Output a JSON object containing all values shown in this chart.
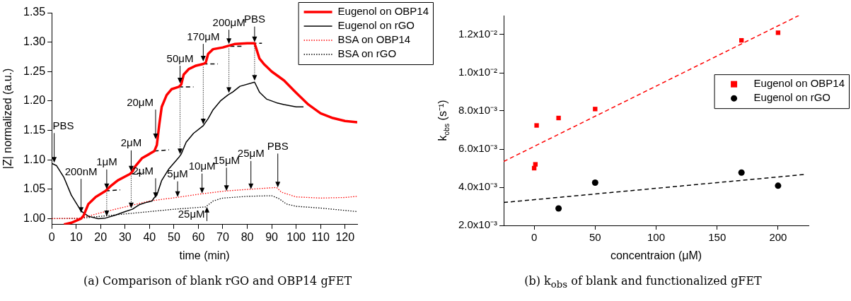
{
  "chart_data": [
    {
      "type": "line",
      "title": "(a) Comparison of blank rGO and OBP14 gFET",
      "xlabel": "time (min)",
      "ylabel": "|Z| normalized (a.u.)",
      "xlim": [
        0,
        125
      ],
      "xticks": [
        0,
        10,
        20,
        30,
        40,
        50,
        60,
        70,
        80,
        90,
        100,
        110,
        120
      ],
      "ylim": [
        0.99,
        1.35
      ],
      "yticks": [
        {
          "value": 1,
          "label": "1.00"
        },
        {
          "value": 1.05,
          "label": "1.05"
        },
        {
          "value": 1.1,
          "label": "1.10"
        },
        {
          "value": 1.15,
          "label": "1.15"
        },
        {
          "value": 1.2,
          "label": "1.20"
        },
        {
          "value": 1.25,
          "label": "1.25"
        },
        {
          "value": 1.3,
          "label": "1.30"
        },
        {
          "value": 1.35,
          "label": "1.35"
        }
      ],
      "grid": false,
      "legend": "top right",
      "marker": "none",
      "series": [
        {
          "name": "Eugenol on OBP14",
          "color": "#ff0000",
          "line_style": "solid",
          "x": [
            5,
            8,
            12,
            13,
            15,
            18,
            22,
            24,
            27,
            32,
            33,
            34,
            37,
            40,
            42,
            43,
            44,
            45,
            47,
            49,
            52,
            53,
            54,
            56,
            59,
            62,
            63,
            64,
            66,
            70,
            75,
            80,
            83,
            84,
            85,
            87,
            90,
            95,
            100,
            105,
            110,
            115,
            120,
            125
          ],
          "values": [
            0.99,
            0.993,
            1.0,
            1.005,
            1.025,
            1.037,
            1.047,
            1.055,
            1.065,
            1.076,
            1.08,
            1.088,
            1.103,
            1.11,
            1.115,
            1.125,
            1.16,
            1.19,
            1.21,
            1.22,
            1.224,
            1.228,
            1.245,
            1.254,
            1.26,
            1.263,
            1.265,
            1.28,
            1.288,
            1.291,
            1.297,
            1.298,
            1.298,
            1.285,
            1.272,
            1.262,
            1.25,
            1.235,
            1.214,
            1.194,
            1.179,
            1.171,
            1.166,
            1.164
          ]
        },
        {
          "name": "Eugenol on rGO",
          "color": "#000000",
          "line_style": "solid",
          "x": [
            0,
            2,
            5,
            8,
            12,
            15,
            19,
            22,
            26,
            30,
            33,
            36,
            39,
            41,
            42,
            43,
            45,
            48,
            52,
            53,
            55,
            58,
            62,
            64,
            66,
            69,
            72,
            74,
            77,
            83,
            85,
            88,
            92,
            95,
            100,
            103
          ],
          "values": [
            1.094,
            1.09,
            1.07,
            1.04,
            1.013,
            1.004,
            1.0,
            1.001,
            1.006,
            1.012,
            1.016,
            1.024,
            1.028,
            1.03,
            1.036,
            1.04,
            1.065,
            1.085,
            1.104,
            1.11,
            1.13,
            1.145,
            1.158,
            1.17,
            1.185,
            1.2,
            1.21,
            1.215,
            1.225,
            1.232,
            1.215,
            1.203,
            1.197,
            1.194,
            1.19,
            1.19
          ]
        },
        {
          "name": "BSA on OBP14",
          "color": "#ff0000",
          "line_style": "dotted",
          "x": [
            0,
            12,
            20,
            30,
            40,
            51,
            61,
            71,
            81,
            92,
            94,
            100,
            110,
            120,
            125
          ],
          "values": [
            1.0,
            1.001,
            1.01,
            1.02,
            1.03,
            1.036,
            1.042,
            1.047,
            1.05,
            1.053,
            1.045,
            1.037,
            1.035,
            1.036,
            1.038
          ]
        },
        {
          "name": "BSA on rGO",
          "color": "#000000",
          "line_style": "dotted",
          "x": [
            0,
            10,
            20,
            30,
            40,
            50,
            63,
            66,
            70,
            80,
            90,
            93,
            96,
            100,
            110,
            125
          ],
          "values": [
            1.0,
            1.0,
            1.004,
            1.008,
            1.012,
            1.016,
            1.02,
            1.03,
            1.035,
            1.038,
            1.039,
            1.034,
            1.025,
            1.021,
            1.018,
            1.012
          ]
        },
        {
          "color": "#000000",
          "line_style": "dashed",
          "x": [
            22,
            28,
            29,
            32,
            38,
            39,
            42,
            48,
            49,
            52,
            58,
            59,
            62,
            68,
            69,
            73,
            78,
            79,
            82,
            86
          ],
          "values": [
            1.047,
            1.049,
            null,
            1.076,
            1.078,
            null,
            1.115,
            1.117,
            null,
            1.224,
            1.224,
            null,
            1.263,
            1.263,
            null,
            1.293,
            1.293,
            null,
            1.298,
            1.298
          ]
        }
      ],
      "annotations": [
        {
          "text": "PBS",
          "x": 1,
          "y": 1.095
        },
        {
          "text": "200nM",
          "x": 12,
          "y": 1.01
        },
        {
          "text": "1μM",
          "x": 22.5,
          "y": 1.05
        },
        {
          "text": "2μM",
          "x": 32.5,
          "y": 1.08
        },
        {
          "text": "20μM",
          "x": 42.5,
          "y": 1.135
        },
        {
          "text": "50μM",
          "x": 52.5,
          "y": 1.23
        },
        {
          "text": "170μM",
          "x": 62,
          "y": 1.267
        },
        {
          "text": "200μM",
          "x": 72.5,
          "y": 1.297
        },
        {
          "text": "PBS",
          "x": 83,
          "y": 1.3
        },
        {
          "text": "2μM",
          "x": 42.5,
          "y": 1.035
        },
        {
          "text": "5μM",
          "x": 51.5,
          "y": 1.037
        },
        {
          "text": "10μM",
          "x": 61.5,
          "y": 1.043
        },
        {
          "text": "15μM",
          "x": 71.5,
          "y": 1.047
        },
        {
          "text": "25μM",
          "x": 81.5,
          "y": 1.05
        },
        {
          "text": "PBS",
          "x": 92.5,
          "y": 1.053
        },
        {
          "text": "25μM",
          "x": 63.5,
          "y": 1.02
        }
      ]
    },
    {
      "type": "scatter",
      "title": "(b) k$_{obs}$ of blank and functionalized gFET",
      "xlabel": "concentraion (μM)",
      "ylabel": "k$_{obs}$ (s⁻¹)",
      "xlim": [
        -25,
        225
      ],
      "xticks": [
        0,
        50,
        100,
        150,
        200
      ],
      "ylim": [
        0.002,
        0.013
      ],
      "yticks": [
        {
          "value": 0.002,
          "label": "2.0x10⁻³"
        },
        {
          "value": 0.004,
          "label": "4.0x10⁻³"
        },
        {
          "value": 0.006,
          "label": "6.0x10⁻³"
        },
        {
          "value": 0.008,
          "label": "8.0x10⁻³"
        },
        {
          "value": 0.01,
          "label": "1.0x10⁻²"
        },
        {
          "value": 0.012,
          "label": "1.2x10⁻²"
        }
      ],
      "grid": false,
      "legend": "right",
      "series": [
        {
          "name": "Eugenol on OBP14",
          "color": "#ff0000",
          "marker": "square",
          "x": [
            0,
            1,
            2,
            20,
            50,
            170,
            200
          ],
          "values": [
            0.005,
            0.0052,
            0.00724,
            0.00763,
            0.0081,
            0.0117,
            0.0121
          ]
        },
        {
          "name": "Eugenol on rGO",
          "color": "#000000",
          "marker": "circle",
          "x": [
            20,
            50,
            170,
            200
          ],
          "values": [
            0.00289,
            0.00424,
            0.00477,
            0.00408
          ]
        },
        {
          "type": "line",
          "color": "#ff0000",
          "line_style": "dashed",
          "marker": "none",
          "x": [
            -25,
            217
          ],
          "values": [
            0.00535,
            0.013
          ]
        },
        {
          "type": "line",
          "color": "#000000",
          "line_style": "dashed",
          "marker": "none",
          "x": [
            -25,
            222
          ],
          "values": [
            0.0032,
            0.00467
          ]
        }
      ]
    }
  ]
}
